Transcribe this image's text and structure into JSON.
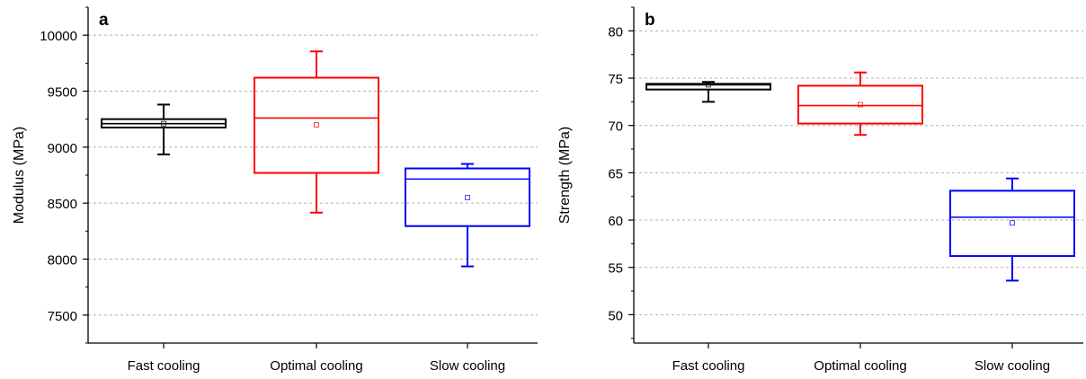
{
  "chart_data": [
    {
      "type": "box",
      "panel_label": "a",
      "ylabel": "Modulus (MPa)",
      "ylim": [
        7250,
        10250
      ],
      "yticks": [
        "7500",
        "8000",
        "8500",
        "9000",
        "9500",
        "10000"
      ],
      "grid": true,
      "categories": [
        "Fast cooling",
        "Optimal cooling",
        "Slow cooling"
      ],
      "colors": [
        "#000000",
        "#ff0000",
        "#0000ff"
      ],
      "boxes": [
        {
          "whisker_low": 8935,
          "q1": 9175,
          "median": 9210,
          "q3": 9250,
          "whisker_high": 9380,
          "mean": 9210
        },
        {
          "whisker_low": 8415,
          "q1": 8770,
          "median": 9260,
          "q3": 9620,
          "whisker_high": 9855,
          "mean": 9200
        },
        {
          "whisker_low": 7935,
          "q1": 8295,
          "median": 8715,
          "q3": 8810,
          "whisker_high": 8850,
          "mean": 8550
        }
      ]
    },
    {
      "type": "box",
      "panel_label": "b",
      "ylabel": "Strength (MPa)",
      "ylim": [
        47,
        82.5
      ],
      "yticks": [
        "50",
        "55",
        "60",
        "65",
        "70",
        "75",
        "80"
      ],
      "grid": true,
      "categories": [
        "Fast cooling",
        "Optimal cooling",
        "Slow cooling"
      ],
      "colors": [
        "#000000",
        "#ff0000",
        "#0000ff"
      ],
      "boxes": [
        {
          "whisker_low": 72.5,
          "q1": 73.8,
          "median": 74.3,
          "q3": 74.4,
          "whisker_high": 74.6,
          "mean": 74.3
        },
        {
          "whisker_low": 69.0,
          "q1": 70.2,
          "median": 72.1,
          "q3": 74.2,
          "whisker_high": 75.6,
          "mean": 72.2
        },
        {
          "whisker_low": 53.6,
          "q1": 56.2,
          "median": 60.3,
          "q3": 63.1,
          "whisker_high": 64.4,
          "mean": 59.7
        }
      ]
    }
  ]
}
